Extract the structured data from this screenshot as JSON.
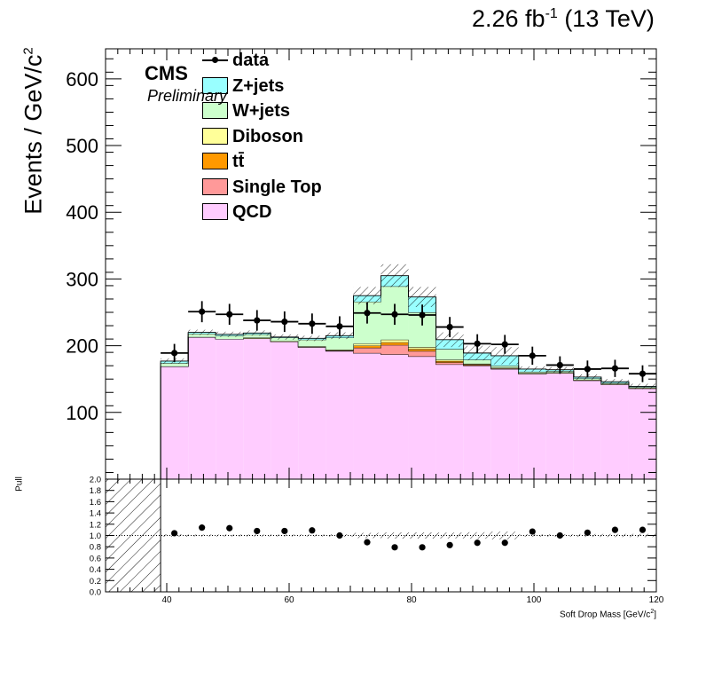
{
  "header": {
    "lumi_value": "2.26 fb",
    "lumi_exp": "-1",
    "energy": " (13 TeV)"
  },
  "labels": {
    "cms": "CMS",
    "preliminary": "Preliminary",
    "ylabel_main": "Events / GeV/c",
    "ylabel_exp": "2",
    "pull_label": "Pull",
    "xlabel_main": "Soft Drop Mass [GeV/c",
    "xlabel_exp": "2",
    "xlabel_end": "]"
  },
  "chart_data": {
    "type": "bar",
    "stacked": true,
    "xlabel": "Soft Drop Mass [GeV/c²]",
    "ylabel": "Events / GeV/c²",
    "xlim": [
      30,
      120
    ],
    "ylim": [
      0,
      645
    ],
    "y_ticks": [
      100,
      200,
      300,
      400,
      500,
      600
    ],
    "x_ticks": [
      40,
      60,
      80,
      100,
      120
    ],
    "bin_edges": [
      39,
      43.5,
      48,
      52.5,
      57,
      61.5,
      66,
      70.5,
      75,
      79.5,
      84,
      88.5,
      93,
      97.5,
      102,
      106.5,
      111,
      115.5,
      120
    ],
    "legend_placement": "top-left",
    "series": [
      {
        "name": "QCD",
        "color": "#ffccff",
        "values": [
          169,
          213,
          210,
          211,
          206,
          198,
          192,
          189,
          187,
          184,
          172,
          170,
          165,
          158,
          159,
          148,
          142,
          136
        ]
      },
      {
        "name": "Single Top",
        "color": "#ff9999",
        "values": [
          0,
          0,
          0,
          0,
          0,
          0,
          1,
          8,
          14,
          8,
          3,
          1,
          1,
          0,
          0,
          0,
          0,
          0
        ]
      },
      {
        "name": "tt̄",
        "color": "#ff9900",
        "values": [
          0,
          0,
          0,
          0,
          0,
          0,
          0,
          3,
          4,
          3,
          2,
          1,
          0,
          0,
          0,
          0,
          0,
          0
        ]
      },
      {
        "name": "Diboson",
        "color": "#ffff99",
        "values": [
          0,
          0,
          0,
          1,
          1,
          1,
          1,
          3,
          4,
          3,
          2,
          1,
          1,
          1,
          1,
          1,
          1,
          1
        ]
      },
      {
        "name": "W+jets",
        "color": "#ccffcc",
        "values": [
          5,
          5,
          5,
          5,
          5,
          10,
          18,
          63,
          80,
          52,
          16,
          6,
          3,
          2,
          2,
          2,
          1,
          1
        ]
      },
      {
        "name": "Z+jets",
        "color": "#99ffff",
        "values": [
          3,
          2,
          2,
          2,
          1,
          2,
          3,
          9,
          16,
          23,
          14,
          10,
          15,
          4,
          2,
          2,
          2,
          1
        ]
      }
    ],
    "data": {
      "name": "data",
      "x": [
        41.25,
        45.75,
        50.25,
        54.75,
        59.25,
        63.75,
        68.25,
        72.75,
        77.25,
        81.75,
        86.25,
        90.75,
        95.25,
        99.75,
        104.25,
        108.75,
        113.25,
        117.75
      ],
      "y": [
        189,
        251,
        247,
        238,
        236,
        233,
        229,
        249,
        247,
        246,
        228,
        203,
        202,
        185,
        171,
        165,
        166,
        158
      ],
      "err": [
        13.7,
        15.8,
        15.7,
        15.4,
        15.4,
        15.3,
        15.1,
        15.8,
        15.7,
        15.7,
        15.1,
        14.2,
        14.2,
        13.6,
        13.1,
        12.8,
        12.9,
        12.6
      ]
    },
    "uncertainty": [
      4,
      4,
      4,
      4,
      4,
      4,
      5,
      13,
      17,
      15,
      11,
      11,
      13,
      4,
      4,
      4,
      4,
      4
    ],
    "pull": {
      "ylim": [
        0,
        2
      ],
      "y_ticks": [
        "0.0",
        "0.2",
        "0.4",
        "0.6",
        "0.8",
        "1.0",
        "1.2",
        "1.4",
        "1.6",
        "1.8",
        "2.0"
      ],
      "values": [
        1.04,
        1.14,
        1.13,
        1.08,
        1.08,
        1.09,
        1.0,
        0.88,
        0.79,
        0.79,
        0.83,
        0.87,
        0.87,
        1.07,
        1.0,
        1.05,
        1.1,
        1.1
      ]
    }
  }
}
